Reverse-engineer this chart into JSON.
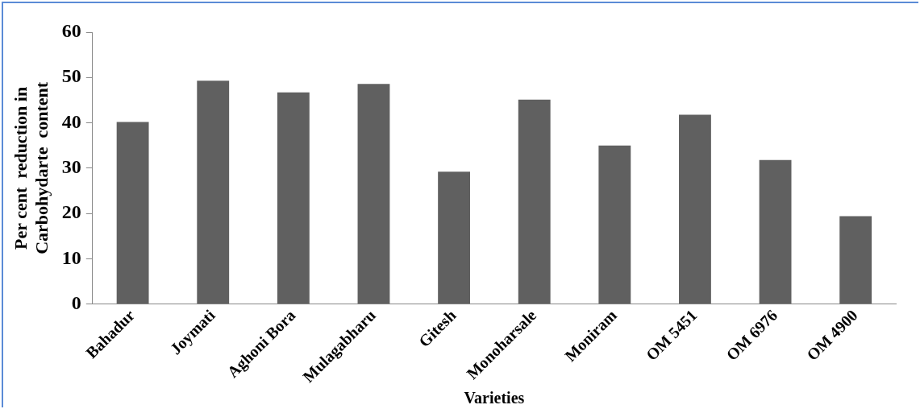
{
  "chart_data": {
    "type": "bar",
    "xlabel": "Varieties",
    "ylabel": "Per cent  reduction in Carbohydarte  content",
    "categories": [
      "Bahadur",
      "Joymati",
      "Aghoni Bora",
      "Mulagabharu",
      "Gitesh",
      "Monoharsale",
      "Moniram",
      "OM 5451",
      "OM 6976",
      "OM 4900"
    ],
    "values": [
      40.2,
      49.3,
      46.7,
      48.6,
      29.2,
      45.1,
      35.0,
      41.8,
      31.8,
      19.4
    ],
    "color": "#606060",
    "ylim": [
      0,
      60
    ],
    "yticks": [
      0,
      10,
      20,
      30,
      40,
      50,
      60
    ],
    "grid": false,
    "legend": false
  }
}
